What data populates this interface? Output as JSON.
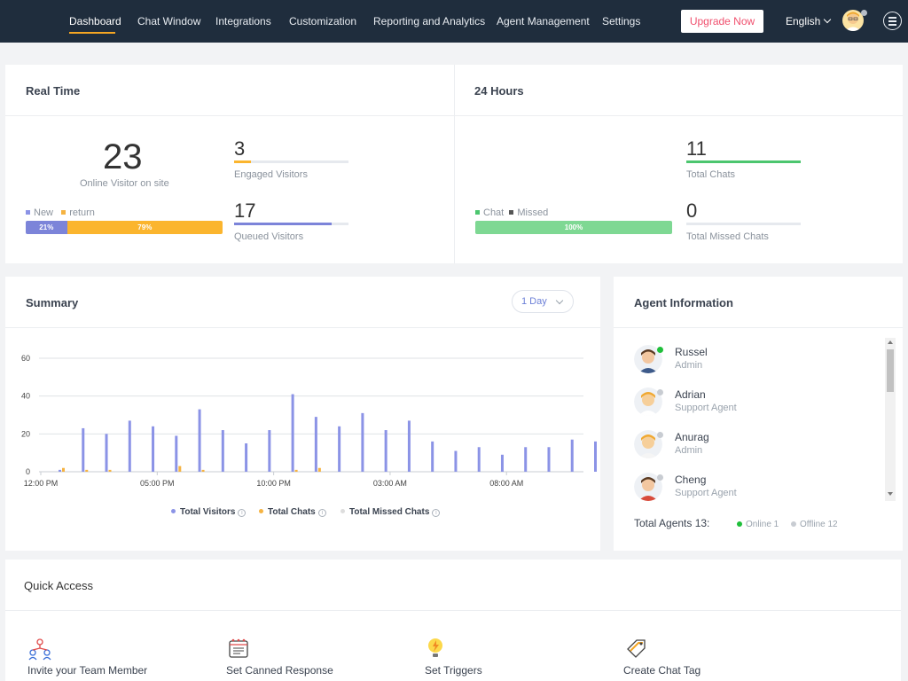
{
  "nav": {
    "items": [
      "Dashboard",
      "Chat Window",
      "Integrations",
      "Customization",
      "Reporting and Analytics",
      "Agent Management",
      "Settings"
    ],
    "upgrade_label": "Upgrade Now",
    "language": "English"
  },
  "realtime": {
    "title": "Real Time",
    "online_count": "23",
    "online_label": "Online Visitor on site",
    "legend_new": "New",
    "legend_return": "return",
    "new_pct_label": "21%",
    "return_pct_label": "79%",
    "new_fraction": 0.21,
    "engaged_count": "3",
    "engaged_label": "Engaged Visitors",
    "engaged_fraction": 0.15,
    "queued_count": "17",
    "queued_label": "Queued Visitors",
    "queued_fraction": 0.85
  },
  "hours24": {
    "title": "24 Hours",
    "legend_chat": "Chat",
    "legend_missed": "Missed",
    "chat_pct_label": "100%",
    "chat_fraction": 1.0,
    "total_chats": "11",
    "total_chats_label": "Total Chats",
    "total_chats_fraction": 1.0,
    "missed_chats": "0",
    "missed_chats_label": "Total Missed Chats",
    "missed_chats_fraction": 0
  },
  "summary": {
    "title": "Summary",
    "period": "1 Day",
    "legend_visitors": "Total Visitors",
    "legend_chats": "Total Chats",
    "legend_missed": "Total Missed Chats"
  },
  "chart_data": {
    "type": "bar",
    "x_ticks": [
      "12:00 PM",
      "05:00 PM",
      "10:00 PM",
      "03:00 AM",
      "08:00 AM"
    ],
    "y_ticks": [
      "0",
      "20",
      "40",
      "60"
    ],
    "ylim": [
      0,
      60
    ],
    "grid": true,
    "legend_position": "bottom",
    "series": [
      {
        "name": "Total Visitors",
        "color": "#8b93e6",
        "values": [
          1,
          23,
          20,
          27,
          24,
          19,
          33,
          22,
          15,
          22,
          41,
          29,
          24,
          31,
          22,
          27,
          16,
          11,
          13,
          9,
          13,
          13,
          17,
          16
        ]
      },
      {
        "name": "Total Chats",
        "color": "#f5b342",
        "values": [
          2,
          1,
          1,
          0,
          0,
          3,
          1,
          0,
          0,
          0,
          1,
          2,
          0,
          0,
          0,
          0,
          0,
          0,
          0,
          0,
          0,
          0,
          0,
          0
        ]
      },
      {
        "name": "Total Missed Chats",
        "color": "#dddddd",
        "values": [
          0,
          0,
          0,
          0,
          0,
          0,
          0,
          0,
          0,
          0,
          0,
          0,
          0,
          0,
          0,
          0,
          0,
          0,
          0,
          0,
          0,
          0,
          0,
          0
        ]
      }
    ]
  },
  "agents": {
    "title": "Agent Information",
    "list": [
      {
        "name": "Russel",
        "role": "Admin",
        "status": "online"
      },
      {
        "name": "Adrian",
        "role": "Support Agent",
        "status": "offline"
      },
      {
        "name": "Anurag",
        "role": "Admin",
        "status": "offline"
      },
      {
        "name": "Cheng",
        "role": "Support Agent",
        "status": "offline"
      }
    ],
    "total_label": "Total Agents 13:",
    "online_label": "Online 1",
    "offline_label": "Offline 12",
    "colors": {
      "online": "#1fbf3a",
      "offline": "#c8ccd2"
    }
  },
  "quick_access": {
    "title": "Quick Access",
    "items": [
      {
        "label": "Invite your Team Member",
        "icon": "team-icon"
      },
      {
        "label": "Set Canned Response",
        "icon": "canned-response-icon"
      },
      {
        "label": "Set Triggers",
        "icon": "trigger-icon"
      },
      {
        "label": "Create Chat Tag",
        "icon": "tag-icon"
      }
    ]
  }
}
